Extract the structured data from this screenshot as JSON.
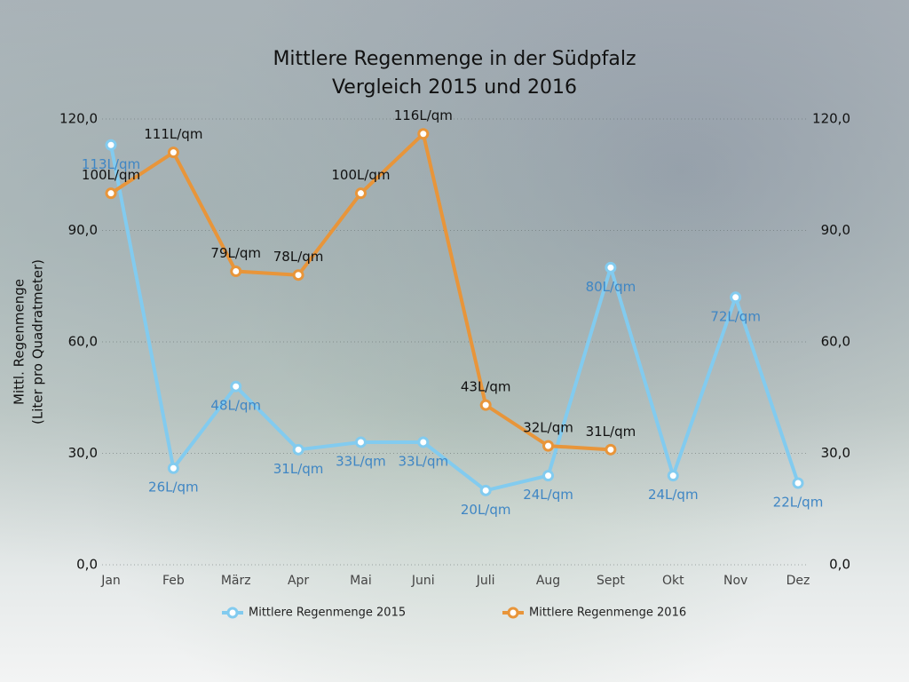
{
  "chart_data": {
    "type": "line",
    "title": "Mittlere Regenmenge in der Südpfalz",
    "subtitle": "Vergleich 2015 und 2016",
    "y_label": [
      "Mittl. Regenmenge",
      "(Liter pro Quadratmeter)"
    ],
    "categories": [
      "Jan",
      "Feb",
      "März",
      "Apr",
      "Mai",
      "Juni",
      "Juli",
      "Aug",
      "Sept",
      "Okt",
      "Nov",
      "Dez"
    ],
    "series": [
      {
        "name": "Mittlere Regenmenge 2015",
        "color": "#82cbef",
        "label_color": "#3f86c4",
        "values": [
          113,
          26,
          48,
          31,
          33,
          33,
          20,
          24,
          80,
          24,
          72,
          22
        ],
        "value_labels": [
          "113L/qm",
          "26L/qm",
          "48L/qm",
          "31L/qm",
          "33L/qm",
          "33L/qm",
          "20L/qm",
          "24L/qm",
          "80L/qm",
          "24L/qm",
          "72L/qm",
          "22L/qm"
        ]
      },
      {
        "name": "Mittlere Regenmenge 2016",
        "color": "#e8953a",
        "label_color": "#111111",
        "values": [
          100,
          111,
          79,
          78,
          100,
          116,
          43,
          32,
          31,
          null,
          null,
          null
        ],
        "value_labels": [
          "100L/qm",
          "111L/qm",
          "79L/qm",
          "78L/qm",
          "100L/qm",
          "116L/qm",
          "43L/qm",
          "32L/qm",
          "31L/qm",
          null,
          null,
          null
        ]
      }
    ],
    "ylim": [
      0,
      120
    ],
    "yticks": [
      {
        "value": 0,
        "label": "0,0"
      },
      {
        "value": 30,
        "label": "30,0"
      },
      {
        "value": 60,
        "label": "60,0"
      },
      {
        "value": 90,
        "label": "90,0"
      },
      {
        "value": 120,
        "label": "120,0"
      }
    ],
    "y2lim": [
      0,
      120
    ],
    "y2ticks": [
      {
        "value": 0,
        "label": "0,0"
      },
      {
        "value": 30,
        "label": "30,0"
      },
      {
        "value": 60,
        "label": "60,0"
      },
      {
        "value": 90,
        "label": "90,0"
      },
      {
        "value": 120,
        "label": "120,0"
      }
    ],
    "grid": true,
    "legend": "bottom"
  }
}
